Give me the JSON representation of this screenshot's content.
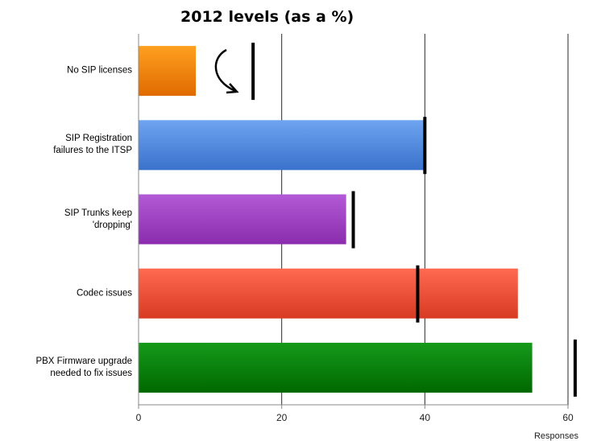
{
  "chart_data": {
    "type": "bar",
    "orientation": "horizontal",
    "categories": [
      [
        "No SIP licenses"
      ],
      [
        "SIP Registration",
        "failures to the ITSP"
      ],
      [
        "SIP Trunks keep",
        "'dropping'"
      ],
      [
        "Codec issues"
      ],
      [
        "PBX Firmware upgrade",
        "needed to fix issues"
      ]
    ],
    "series": [
      {
        "values": [
          8,
          40,
          29,
          53,
          55
        ]
      },
      {
        "values": [
          16,
          40,
          30,
          39,
          61
        ]
      }
    ],
    "bar_colors": [
      [
        "#ffa020",
        "#e06a00"
      ],
      [
        "#6ea4f0",
        "#3a72cc"
      ],
      [
        "#b35ad6",
        "#8a2cad"
      ],
      [
        "#ff6a50",
        "#d83a22"
      ],
      [
        "#159a1a",
        "#006800"
      ]
    ],
    "marker_color": "#000000",
    "xlabel": "Responses",
    "ylabel": "",
    "xlim": [
      0,
      60
    ],
    "xticks": [
      0,
      20,
      40,
      60
    ],
    "grid": true,
    "annotation": "2012 levels (as a %)"
  }
}
